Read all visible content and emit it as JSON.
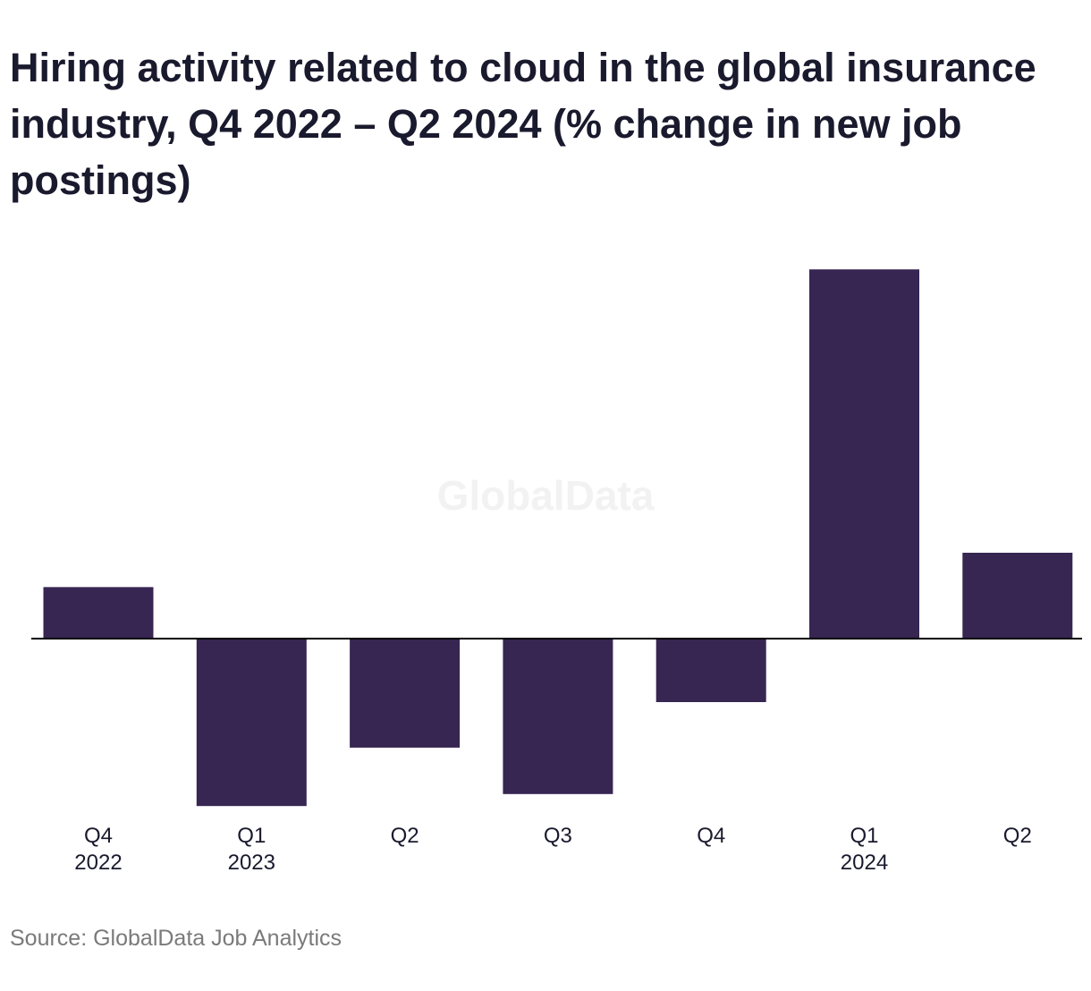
{
  "title": "Hiring activity related to cloud in the global insurance industry, Q4 2022 – Q2 2024 (% change in new job postings)",
  "source": "Source: GlobalData Job Analytics",
  "watermark": "GlobalData",
  "colors": {
    "bar": "#372552",
    "axis": "#000000",
    "text": "#1a1a2e",
    "source": "#7a7a7a"
  },
  "chart_data": {
    "type": "bar",
    "title": "Hiring activity related to cloud in the global insurance industry, Q4 2022 – Q2 2024 (% change in new job postings)",
    "categories": [
      [
        "Q4",
        "2022"
      ],
      [
        "Q1",
        "2023"
      ],
      [
        "Q2",
        ""
      ],
      [
        "Q3",
        ""
      ],
      [
        "Q4",
        ""
      ],
      [
        "Q1",
        "2024"
      ],
      [
        "Q2",
        ""
      ]
    ],
    "values": [
      6,
      -19.5,
      -12.7,
      -18.1,
      -7.4,
      43,
      10
    ],
    "xlabel": "",
    "ylabel": "",
    "ylim": [
      -20,
      43
    ],
    "grid": false,
    "legend": "none"
  }
}
